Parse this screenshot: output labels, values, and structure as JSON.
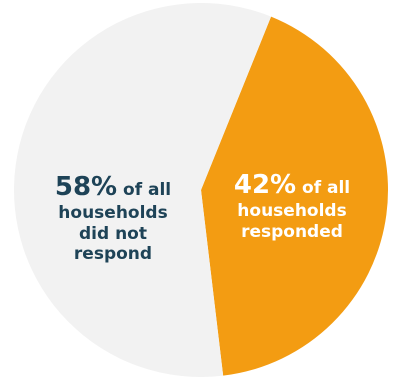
{
  "chart_data": {
    "type": "pie",
    "slices": [
      {
        "name": "responded",
        "value": 42,
        "color": "#f39c12"
      },
      {
        "name": "did not respond",
        "value": 58,
        "color": "#f2f2f2"
      }
    ],
    "start_angle_deg": 22
  },
  "labels": {
    "responded": {
      "pct": "42%",
      "text_line1": " of all",
      "text_line2": "households",
      "text_line3": "responded"
    },
    "not_responded": {
      "pct": "58%",
      "text_line1": " of all",
      "text_line2": "households",
      "text_line3": "did not",
      "text_line4": "respond"
    }
  },
  "colors": {
    "responded": "#f39c12",
    "not_responded": "#f2f2f2",
    "label_dark": "#1e4357",
    "label_light": "#ffffff"
  }
}
